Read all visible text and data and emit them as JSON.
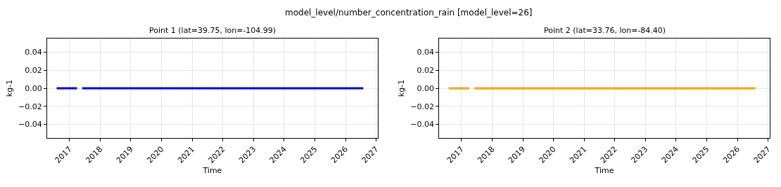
{
  "chart_data": [
    {
      "type": "line",
      "title": "Point 1 (lat=39.75, lon=-104.99)",
      "xlabel": "Time",
      "ylabel": "kg-1",
      "annotations": [
        "model_level/number_concentration_rain [model_level=26]"
      ],
      "x": [
        "2016-08",
        "2016-09",
        "2016-10",
        "2016-11",
        "2016-12",
        "2017-01",
        "2017-02",
        "2017-03",
        "2017-04",
        "2017-05",
        "2017-06",
        "2017-07",
        "2017-08",
        "2017-09",
        "2017-10",
        "2017-11",
        "2017-12",
        "2018-01",
        "2018-02",
        "2018-03",
        "2018-04",
        "2018-05",
        "2018-06",
        "2018-07",
        "2018-08",
        "2018-09",
        "2018-10",
        "2018-11",
        "2018-12",
        "2019-01",
        "2019-02",
        "2019-03",
        "2019-04",
        "2019-05",
        "2019-06",
        "2019-07",
        "2019-08",
        "2019-09",
        "2019-10",
        "2019-11",
        "2019-12",
        "2020-01",
        "2020-02",
        "2020-03",
        "2020-04",
        "2020-05",
        "2020-06",
        "2020-07",
        "2020-08",
        "2020-09",
        "2020-10",
        "2020-11",
        "2020-12",
        "2021-01",
        "2021-02",
        "2021-03",
        "2021-04",
        "2021-05",
        "2021-06",
        "2021-07",
        "2021-08",
        "2021-09",
        "2021-10",
        "2021-11",
        "2021-12",
        "2022-01",
        "2022-02",
        "2022-03",
        "2022-04",
        "2022-05",
        "2022-06",
        "2022-07",
        "2022-08",
        "2022-09",
        "2022-10",
        "2022-11",
        "2022-12",
        "2023-01",
        "2023-02",
        "2023-03",
        "2023-04",
        "2023-05",
        "2023-06",
        "2023-07",
        "2023-08",
        "2023-09",
        "2023-10",
        "2023-11",
        "2023-12",
        "2024-01",
        "2024-02",
        "2024-03",
        "2024-04",
        "2024-05",
        "2024-06",
        "2024-07",
        "2024-08",
        "2024-09",
        "2024-10",
        "2024-11",
        "2024-12",
        "2025-01",
        "2025-02",
        "2025-03",
        "2025-04",
        "2025-05",
        "2025-06",
        "2025-07",
        "2025-08",
        "2025-09",
        "2025-10",
        "2025-11",
        "2025-12",
        "2026-01",
        "2026-02",
        "2026-03",
        "2026-04",
        "2026-05",
        "2026-06",
        "2026-07",
        "2026-08"
      ],
      "series": [
        {
          "color": "#0000ff",
          "values": [
            0,
            0,
            0,
            0,
            0,
            0,
            0,
            0,
            0,
            null,
            0,
            0,
            0,
            0,
            0,
            0,
            0,
            0,
            0,
            0,
            0,
            0,
            0,
            0,
            0,
            0,
            0,
            0,
            0,
            0,
            0,
            0,
            0,
            0,
            0,
            0,
            0,
            0,
            0,
            0,
            0,
            0,
            0,
            0,
            0,
            0,
            0,
            0,
            0,
            0,
            0,
            0,
            0,
            0,
            0,
            0,
            0,
            0,
            0,
            0,
            0,
            0,
            0,
            0,
            0,
            0,
            0,
            0,
            0,
            0,
            0,
            0,
            0,
            0,
            0,
            0,
            0,
            0,
            0,
            0,
            0,
            0,
            0,
            0,
            0,
            0,
            0,
            0,
            0,
            0,
            0,
            0,
            0,
            0,
            0,
            0,
            0,
            0,
            0,
            0,
            0,
            0,
            0,
            0,
            0,
            0,
            0,
            0,
            0,
            0,
            0,
            0,
            0,
            0,
            0,
            0,
            0,
            0,
            0,
            0,
            0
          ]
        }
      ],
      "xlim": [
        "2016-04-10",
        "2027-01-20"
      ],
      "xticks": [
        {
          "value": "2017-01-01",
          "label": "2017"
        },
        {
          "value": "2018-01-01",
          "label": "2018"
        },
        {
          "value": "2019-01-01",
          "label": "2019"
        },
        {
          "value": "2020-01-01",
          "label": "2020"
        },
        {
          "value": "2021-01-01",
          "label": "2021"
        },
        {
          "value": "2022-01-01",
          "label": "2022"
        },
        {
          "value": "2023-01-01",
          "label": "2023"
        },
        {
          "value": "2024-01-01",
          "label": "2024"
        },
        {
          "value": "2025-01-01",
          "label": "2025"
        },
        {
          "value": "2026-01-01",
          "label": "2026"
        },
        {
          "value": "2027-01-01",
          "label": "2027"
        }
      ],
      "ylim": [
        -0.055,
        0.055
      ],
      "yticks": [
        {
          "value": -0.04,
          "label": "−0.04"
        },
        {
          "value": -0.02,
          "label": "−0.02"
        },
        {
          "value": 0,
          "label": "0.00"
        },
        {
          "value": 0.02,
          "label": "0.02"
        },
        {
          "value": 0.04,
          "label": "0.04"
        }
      ],
      "grid": true,
      "line_style": "solid"
    },
    {
      "type": "line",
      "title": "Point 2 (lat=33.76, lon=-84.40)",
      "xlabel": "Time",
      "ylabel": "kg-1",
      "x": [
        "2016-08",
        "2016-09",
        "2016-10",
        "2016-11",
        "2016-12",
        "2017-01",
        "2017-02",
        "2017-03",
        "2017-04",
        "2017-05",
        "2017-06",
        "2017-07",
        "2017-08",
        "2017-09",
        "2017-10",
        "2017-11",
        "2017-12",
        "2018-01",
        "2018-02",
        "2018-03",
        "2018-04",
        "2018-05",
        "2018-06",
        "2018-07",
        "2018-08",
        "2018-09",
        "2018-10",
        "2018-11",
        "2018-12",
        "2019-01",
        "2019-02",
        "2019-03",
        "2019-04",
        "2019-05",
        "2019-06",
        "2019-07",
        "2019-08",
        "2019-09",
        "2019-10",
        "2019-11",
        "2019-12",
        "2020-01",
        "2020-02",
        "2020-03",
        "2020-04",
        "2020-05",
        "2020-06",
        "2020-07",
        "2020-08",
        "2020-09",
        "2020-10",
        "2020-11",
        "2020-12",
        "2021-01",
        "2021-02",
        "2021-03",
        "2021-04",
        "2021-05",
        "2021-06",
        "2021-07",
        "2021-08",
        "2021-09",
        "2021-10",
        "2021-11",
        "2021-12",
        "2022-01",
        "2022-02",
        "2022-03",
        "2022-04",
        "2022-05",
        "2022-06",
        "2022-07",
        "2022-08",
        "2022-09",
        "2022-10",
        "2022-11",
        "2022-12",
        "2023-01",
        "2023-02",
        "2023-03",
        "2023-04",
        "2023-05",
        "2023-06",
        "2023-07",
        "2023-08",
        "2023-09",
        "2023-10",
        "2023-11",
        "2023-12",
        "2024-01",
        "2024-02",
        "2024-03",
        "2024-04",
        "2024-05",
        "2024-06",
        "2024-07",
        "2024-08",
        "2024-09",
        "2024-10",
        "2024-11",
        "2024-12",
        "2025-01",
        "2025-02",
        "2025-03",
        "2025-04",
        "2025-05",
        "2025-06",
        "2025-07",
        "2025-08",
        "2025-09",
        "2025-10",
        "2025-11",
        "2025-12",
        "2026-01",
        "2026-02",
        "2026-03",
        "2026-04",
        "2026-05",
        "2026-06",
        "2026-07",
        "2026-08"
      ],
      "series": [
        {
          "color": "#ffa500",
          "values": [
            0,
            0,
            0,
            0,
            0,
            0,
            0,
            0,
            0,
            null,
            0,
            0,
            0,
            0,
            0,
            0,
            0,
            0,
            0,
            0,
            0,
            0,
            0,
            0,
            0,
            0,
            0,
            0,
            0,
            0,
            0,
            0,
            0,
            0,
            0,
            0,
            0,
            0,
            0,
            0,
            0,
            0,
            0,
            0,
            0,
            0,
            0,
            0,
            0,
            0,
            0,
            0,
            0,
            0,
            0,
            0,
            0,
            0,
            0,
            0,
            0,
            0,
            0,
            0,
            0,
            0,
            0,
            0,
            0,
            0,
            0,
            0,
            0,
            0,
            0,
            0,
            0,
            0,
            0,
            0,
            0,
            0,
            0,
            0,
            0,
            0,
            0,
            0,
            0,
            0,
            0,
            0,
            0,
            0,
            0,
            0,
            0,
            0,
            0,
            0,
            0,
            0,
            0,
            0,
            0,
            0,
            0,
            0,
            0,
            0,
            0,
            0,
            0,
            0,
            0,
            0,
            0,
            0,
            0,
            0,
            0
          ]
        }
      ],
      "xlim": [
        "2016-04-10",
        "2027-01-20"
      ],
      "xticks": [
        {
          "value": "2017-01-01",
          "label": "2017"
        },
        {
          "value": "2018-01-01",
          "label": "2018"
        },
        {
          "value": "2019-01-01",
          "label": "2019"
        },
        {
          "value": "2020-01-01",
          "label": "2020"
        },
        {
          "value": "2021-01-01",
          "label": "2021"
        },
        {
          "value": "2022-01-01",
          "label": "2022"
        },
        {
          "value": "2023-01-01",
          "label": "2023"
        },
        {
          "value": "2024-01-01",
          "label": "2024"
        },
        {
          "value": "2025-01-01",
          "label": "2025"
        },
        {
          "value": "2026-01-01",
          "label": "2026"
        },
        {
          "value": "2027-01-01",
          "label": "2027"
        }
      ],
      "ylim": [
        -0.055,
        0.055
      ],
      "yticks": [
        {
          "value": -0.04,
          "label": "−0.04"
        },
        {
          "value": -0.02,
          "label": "−0.02"
        },
        {
          "value": 0,
          "label": "0.00"
        },
        {
          "value": 0.02,
          "label": "0.02"
        },
        {
          "value": 0.04,
          "label": "0.04"
        }
      ],
      "grid": true,
      "line_style": "solid"
    }
  ]
}
